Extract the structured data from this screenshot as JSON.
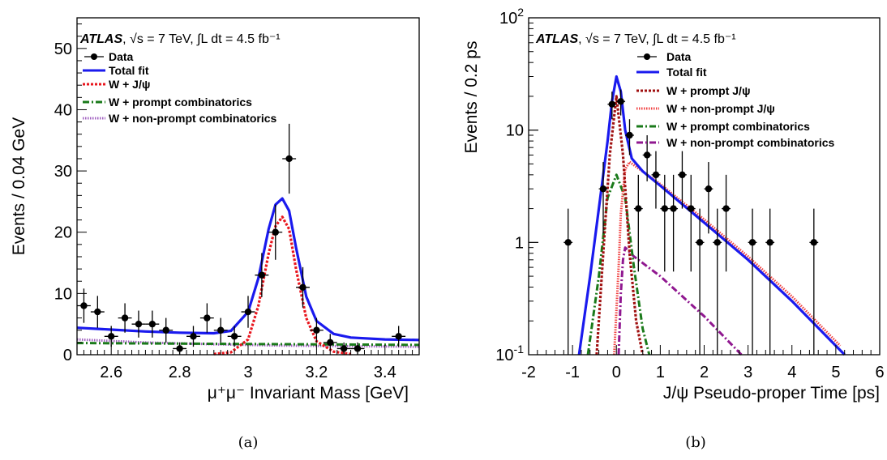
{
  "chart_data": [
    {
      "type": "scatter",
      "panel_label": "(a)",
      "experiment": "ATLAS",
      "energy_text": ", √s = 7 TeV, ∫L dt = 4.5 fb⁻¹",
      "xlabel": "μ⁺μ⁻ Invariant Mass [GeV]",
      "ylabel": "Events / 0.04 GeV",
      "xlim": [
        2.5,
        3.5
      ],
      "ylim": [
        0,
        55
      ],
      "x_ticks": [
        "2.6",
        "2.8",
        "3",
        "3.2",
        "3.4"
      ],
      "y_ticks": [
        "0",
        "10",
        "20",
        "30",
        "40",
        "50"
      ],
      "legend": [
        "Data",
        "Total fit",
        "W + J/ψ",
        "W + prompt combinatorics",
        "W + non-prompt combinatorics"
      ],
      "colors": {
        "data": "#000000",
        "total": "#1a1aee",
        "jpsi": "#e8141c",
        "prompt": "#1a7a1a",
        "nonprompt": "#a060c0"
      },
      "data_points": [
        {
          "x": 2.52,
          "y": 8,
          "yerr": 2.8
        },
        {
          "x": 2.56,
          "y": 7,
          "yerr": 2.6
        },
        {
          "x": 2.6,
          "y": 3,
          "yerr": 1.7
        },
        {
          "x": 2.64,
          "y": 6,
          "yerr": 2.4
        },
        {
          "x": 2.68,
          "y": 5,
          "yerr": 2.2
        },
        {
          "x": 2.72,
          "y": 5,
          "yerr": 2.2
        },
        {
          "x": 2.76,
          "y": 4,
          "yerr": 2.0
        },
        {
          "x": 2.8,
          "y": 1,
          "yerr": 1.0
        },
        {
          "x": 2.84,
          "y": 3,
          "yerr": 1.7
        },
        {
          "x": 2.88,
          "y": 6,
          "yerr": 2.4
        },
        {
          "x": 2.92,
          "y": 4,
          "yerr": 2.0
        },
        {
          "x": 2.96,
          "y": 3,
          "yerr": 1.7
        },
        {
          "x": 3.0,
          "y": 7,
          "yerr": 2.6
        },
        {
          "x": 3.04,
          "y": 13,
          "yerr": 3.6
        },
        {
          "x": 3.08,
          "y": 20,
          "yerr": 4.5
        },
        {
          "x": 3.12,
          "y": 32,
          "yerr": 5.7
        },
        {
          "x": 3.16,
          "y": 11,
          "yerr": 3.3
        },
        {
          "x": 3.2,
          "y": 4,
          "yerr": 2.0
        },
        {
          "x": 3.24,
          "y": 2,
          "yerr": 1.4
        },
        {
          "x": 3.28,
          "y": 1,
          "yerr": 1.0
        },
        {
          "x": 3.32,
          "y": 1,
          "yerr": 1.0
        },
        {
          "x": 3.44,
          "y": 3,
          "yerr": 1.7
        }
      ],
      "curves": {
        "total": {
          "x": [
            2.5,
            2.6,
            2.7,
            2.8,
            2.9,
            2.95,
            3.0,
            3.03,
            3.06,
            3.08,
            3.1,
            3.12,
            3.14,
            3.17,
            3.2,
            3.25,
            3.3,
            3.4,
            3.5
          ],
          "y": [
            4.4,
            4.1,
            3.8,
            3.6,
            3.5,
            3.9,
            7.0,
            12.5,
            20.5,
            24.5,
            25.5,
            23.5,
            17.5,
            9.5,
            5.5,
            3.4,
            2.8,
            2.5,
            2.4
          ]
        },
        "jpsi": {
          "x": [
            2.9,
            2.95,
            3.0,
            3.03,
            3.06,
            3.08,
            3.1,
            3.12,
            3.14,
            3.17,
            3.2,
            3.25,
            3.3
          ],
          "y": [
            0.1,
            0.4,
            2.5,
            8.0,
            16.5,
            21.0,
            22.5,
            20.5,
            14.0,
            6.0,
            2.2,
            0.5,
            0.1
          ]
        },
        "prompt": {
          "x": [
            2.5,
            3.5
          ],
          "y": [
            1.9,
            1.6
          ]
        },
        "nonprompt": {
          "x": [
            2.5,
            2.7,
            2.9,
            3.1,
            3.3,
            3.5
          ],
          "y": [
            2.5,
            2.0,
            1.7,
            1.5,
            1.4,
            1.3
          ]
        }
      }
    },
    {
      "type": "scatter",
      "panel_label": "(b)",
      "experiment": "ATLAS",
      "energy_text": ", √s = 7 TeV, ∫L dt = 4.5 fb⁻¹",
      "xlabel": "J/ψ Pseudo-proper Time [ps]",
      "ylabel": "Events / 0.2 ps",
      "y_scale": "log",
      "xlim": [
        -2,
        6
      ],
      "ylim": [
        0.1,
        100
      ],
      "x_ticks": [
        "-2",
        "-1",
        "0",
        "1",
        "2",
        "3",
        "4",
        "5",
        "6"
      ],
      "y_ticks": [
        {
          "value": 0.1,
          "label": "10",
          "sup": "-1"
        },
        {
          "value": 1,
          "label": "1",
          "sup": ""
        },
        {
          "value": 10,
          "label": "10",
          "sup": ""
        },
        {
          "value": 100,
          "label": "10",
          "sup": "2"
        }
      ],
      "legend": [
        "Data",
        "Total fit",
        "W + prompt J/ψ",
        "W + non-prompt J/ψ",
        "W + prompt combinatorics",
        "W + non-prompt combinatorics"
      ],
      "colors": {
        "data": "#000000",
        "total": "#1a1aee",
        "prompt_jpsi": "#a01010",
        "nonprompt_jpsi": "#f04040",
        "prompt_comb": "#1a7a1a",
        "nonprompt_comb": "#901890"
      },
      "data_points": [
        {
          "x": -1.1,
          "y": 1,
          "lo": 0.1,
          "hi": 2.0
        },
        {
          "x": -0.3,
          "y": 3,
          "lo": 1.2,
          "hi": 5.2
        },
        {
          "x": -0.1,
          "y": 17,
          "lo": 12.5,
          "hi": 22
        },
        {
          "x": 0.1,
          "y": 18,
          "lo": 13.5,
          "hi": 23
        },
        {
          "x": 0.3,
          "y": 9,
          "lo": 6,
          "hi": 12.5
        },
        {
          "x": 0.5,
          "y": 2,
          "lo": 0.55,
          "hi": 4
        },
        {
          "x": 0.7,
          "y": 6,
          "lo": 3.5,
          "hi": 9
        },
        {
          "x": 0.9,
          "y": 4,
          "lo": 2,
          "hi": 6.5
        },
        {
          "x": 1.1,
          "y": 2,
          "lo": 0.55,
          "hi": 4
        },
        {
          "x": 1.3,
          "y": 2,
          "lo": 0.55,
          "hi": 4
        },
        {
          "x": 1.5,
          "y": 4,
          "lo": 2,
          "hi": 6.5
        },
        {
          "x": 1.7,
          "y": 2,
          "lo": 0.55,
          "hi": 4
        },
        {
          "x": 1.9,
          "y": 1,
          "lo": 0.1,
          "hi": 2.0
        },
        {
          "x": 2.1,
          "y": 3,
          "lo": 1.2,
          "hi": 5.2
        },
        {
          "x": 2.3,
          "y": 1,
          "lo": 0.1,
          "hi": 2.0
        },
        {
          "x": 2.5,
          "y": 2,
          "lo": 0.55,
          "hi": 4
        },
        {
          "x": 3.1,
          "y": 1,
          "lo": 0.1,
          "hi": 2.0
        },
        {
          "x": 3.5,
          "y": 1,
          "lo": 0.1,
          "hi": 2.0
        },
        {
          "x": 4.5,
          "y": 1,
          "lo": 0.1,
          "hi": 2.0
        }
      ],
      "curves": {
        "total": {
          "x": [
            -0.85,
            -0.6,
            -0.4,
            -0.2,
            -0.1,
            0.0,
            0.1,
            0.2,
            0.35,
            0.6,
            1.0,
            2.0,
            3.0,
            4.0,
            5.2
          ],
          "y": [
            0.1,
            0.5,
            2.0,
            8.0,
            18.0,
            30.0,
            22.0,
            10.0,
            5.6,
            4.3,
            3.2,
            1.5,
            0.7,
            0.3,
            0.1
          ]
        },
        "prompt_jpsi": {
          "x": [
            -0.45,
            -0.3,
            -0.15,
            0.0,
            0.15,
            0.3,
            0.45,
            0.6
          ],
          "y": [
            0.1,
            0.8,
            6.0,
            20.0,
            6.0,
            0.8,
            0.2,
            0.1
          ]
        },
        "nonprompt_jpsi": {
          "x": [
            -0.05,
            0.05,
            0.1,
            0.2,
            0.3,
            1.0,
            2.0,
            3.0,
            4.0,
            5.1
          ],
          "y": [
            0.1,
            0.6,
            1.8,
            4.5,
            5.2,
            3.3,
            1.6,
            0.75,
            0.33,
            0.12
          ]
        },
        "prompt_comb": {
          "x": [
            -0.65,
            -0.4,
            -0.2,
            0.0,
            0.2,
            0.4,
            0.6,
            0.75
          ],
          "y": [
            0.1,
            0.5,
            2.5,
            4.0,
            2.5,
            0.6,
            0.17,
            0.1
          ]
        },
        "nonprompt_comb": {
          "x": [
            0.05,
            0.1,
            0.15,
            0.2,
            0.4,
            1.0,
            2.0,
            2.85
          ],
          "y": [
            0.1,
            0.35,
            0.7,
            0.9,
            0.75,
            0.5,
            0.22,
            0.1
          ]
        }
      }
    }
  ]
}
